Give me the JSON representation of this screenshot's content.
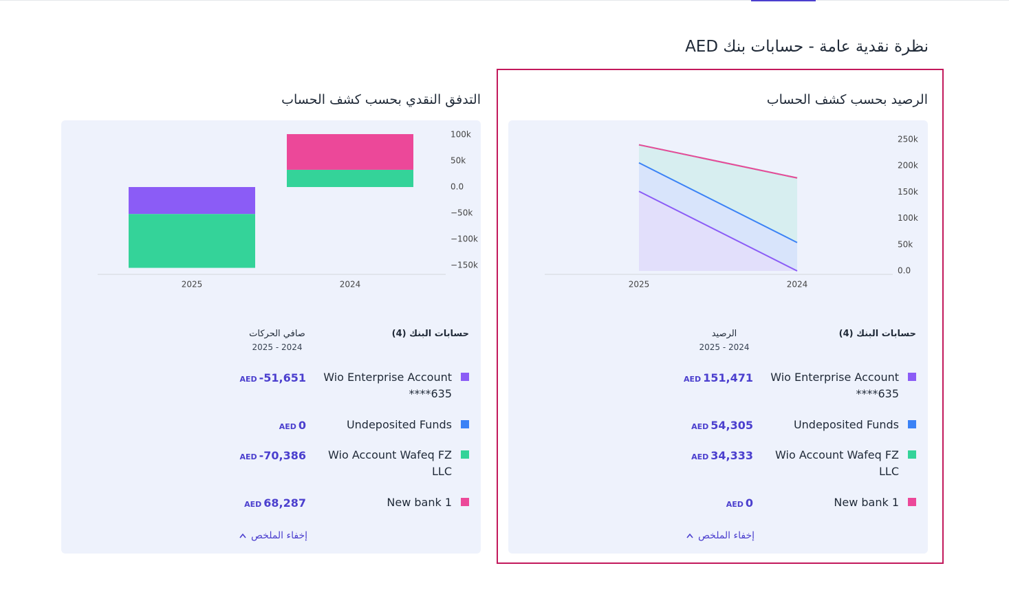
{
  "header": {
    "title": "نظرة نقدية عامة - حسابات بنك AED"
  },
  "chart_data": [
    {
      "type": "area",
      "stacked": true,
      "title": "الرصيد بحسب كشف الحساب",
      "categories": [
        "2025",
        "2024"
      ],
      "series": [
        {
          "name": "Wio Enterprise Account ****635",
          "color": "#8b5cf6",
          "values": [
            151471,
            0
          ]
        },
        {
          "name": "Undeposited Funds",
          "color": "#3b82f6",
          "values": [
            54305,
            54000
          ]
        },
        {
          "name": "Wio Account Wafeq FZ LLC",
          "color": "#34d399",
          "values": [
            34333,
            123000
          ]
        },
        {
          "name": "New bank 1",
          "color": "#ec4899",
          "values": [
            0,
            0
          ]
        }
      ],
      "ylim": [
        0,
        250000
      ],
      "yticks": [
        {
          "value": 0,
          "label": "0.0"
        },
        {
          "value": 50000,
          "label": "50k"
        },
        {
          "value": 100000,
          "label": "100k"
        },
        {
          "value": 150000,
          "label": "150k"
        },
        {
          "value": 200000,
          "label": "200k"
        },
        {
          "value": 250000,
          "label": "250k"
        }
      ]
    },
    {
      "type": "bar",
      "stacked": true,
      "title": "التدفق النقدي بحسب كشف الحساب",
      "categories": [
        "2025",
        "2024"
      ],
      "series": [
        {
          "name": "Wio Enterprise Account ****635",
          "color": "#8b5cf6",
          "values": [
            -51651,
            0
          ]
        },
        {
          "name": "Undeposited Funds",
          "color": "#3b82f6",
          "values": [
            0,
            0
          ]
        },
        {
          "name": "Wio Account Wafeq FZ LLC",
          "color": "#34d399",
          "values": [
            -103000,
            33000
          ]
        },
        {
          "name": "New bank 1",
          "color": "#ec4899",
          "values": [
            0,
            68287
          ]
        }
      ],
      "ylim": [
        -150000,
        100000
      ],
      "yticks": [
        {
          "value": -150000,
          "label": "−150k"
        },
        {
          "value": -100000,
          "label": "−100k"
        },
        {
          "value": -50000,
          "label": "−50k"
        },
        {
          "value": 0,
          "label": "0.0"
        },
        {
          "value": 50000,
          "label": "50k"
        },
        {
          "value": 100000,
          "label": "100k"
        }
      ]
    }
  ],
  "summaries": [
    {
      "accounts_header": "حسابات البنك (4)",
      "column_title": "الرصيد",
      "period": "2025 - 2024",
      "currency": "AED",
      "amounts": [
        "151,471",
        "54,305",
        "34,333",
        "0"
      ],
      "toggle": "إخفاء الملخص"
    },
    {
      "accounts_header": "حسابات البنك (4)",
      "column_title": "صافي الحركات",
      "period": "2025 - 2024",
      "currency": "AED",
      "amounts": [
        "-51,651",
        "0",
        "-70,386",
        "68,287"
      ],
      "toggle": "إخفاء الملخص"
    }
  ]
}
